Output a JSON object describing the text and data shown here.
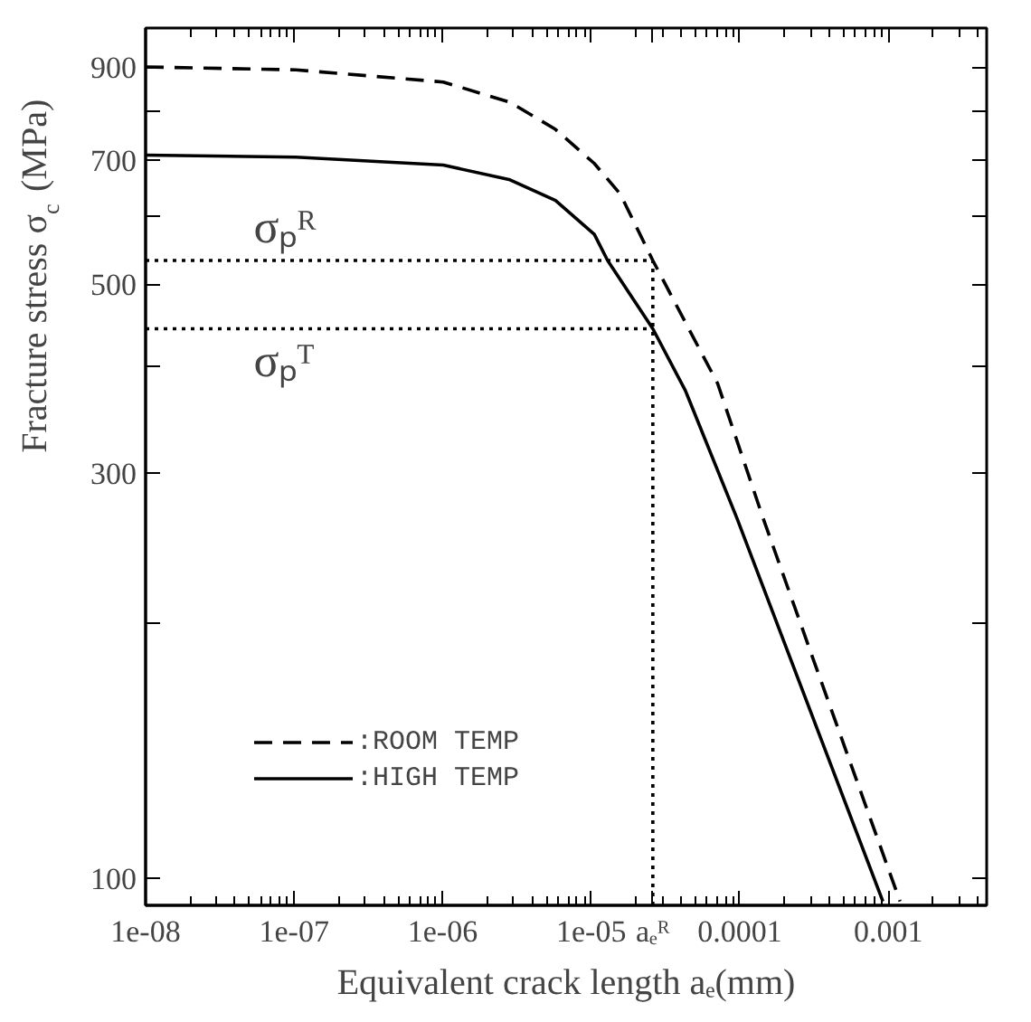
{
  "chart_data": {
    "type": "line",
    "xlabel": "Equivalent crack length aₑ(mm)",
    "ylabel": "Fracture stress σ$_{c}$ (MPa)",
    "log": "xy",
    "xlim": [
      1e-08,
      0.0046
    ],
    "ylim": [
      93,
      1000
    ],
    "xticks": [
      {
        "value": 1e-08,
        "label": "1e-08"
      },
      {
        "value": 1e-07,
        "label": "1e-07"
      },
      {
        "value": 1e-06,
        "label": "1e-06"
      },
      {
        "value": 1e-05,
        "label": "1e-05"
      },
      {
        "value": 2.6e-05,
        "label": "aₑᴿ"
      },
      {
        "value": 0.0001,
        "label": "0.0001"
      },
      {
        "value": 0.001,
        "label": "0.001"
      }
    ],
    "yticks": [
      100,
      {
        "value": 200,
        "label": null
      },
      300,
      {
        "value": 400,
        "label": null
      },
      500,
      {
        "value": 600,
        "label": null
      },
      700,
      {
        "value": 800,
        "label": null
      },
      900
    ],
    "legend": "bottom left",
    "grid": false,
    "series": [
      {
        "name": ":ROOM TEMP",
        "color": "#000000",
        "line_style": "dashed",
        "x": [
          1e-08,
          1.03e-07,
          1.01e-06,
          2.84e-06,
          5.75e-06,
          1.05e-05,
          1.57e-05,
          2.6e-05,
          4.3e-05,
          7.1e-05,
          0.000144,
          0.00032,
          0.0012
        ],
        "values": [
          900,
          893,
          864,
          818,
          760,
          693,
          638,
          533,
          451,
          382,
          265,
          179,
          94
        ]
      },
      {
        "name": ":HIGH TEMP",
        "color": "#000000",
        "line_style": "solid",
        "x": [
          1e-08,
          1.03e-07,
          1.01e-06,
          2.84e-06,
          5.75e-06,
          1.05e-05,
          1.29e-05,
          2.6e-05,
          4.3e-05,
          9.6e-05,
          0.00092
        ],
        "values": [
          709,
          705,
          690,
          663,
          627,
          572,
          533,
          443,
          375,
          265,
          94
        ]
      },
      {
        "color": "#000000",
        "line_style": "dotted",
        "x": [
          1e-08,
          2.6e-05
        ],
        "values": [
          533,
          533
        ]
      },
      {
        "color": "#000000",
        "line_style": "dotted",
        "x": [
          1e-08,
          2.6e-05
        ],
        "values": [
          443,
          443
        ]
      },
      {
        "color": "#000000",
        "line_style": "dotted",
        "x": [
          2.6e-05,
          2.6e-05
        ],
        "values": [
          93,
          533
        ]
      }
    ],
    "annotations": [
      {
        "text": "σₚᴿ",
        "x": 2e-08,
        "y": 533
      },
      {
        "text": "σₚᵀ",
        "x": 2e-08,
        "y": 443
      }
    ]
  }
}
